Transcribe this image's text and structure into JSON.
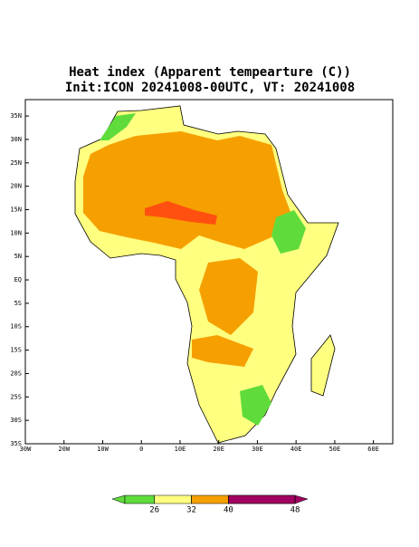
{
  "title": [
    "Heat index (Apparent tempearture (C))",
    "Init:ICON 20241008-00UTC, VT: 20241008"
  ],
  "map": {
    "xlim": [
      -30,
      65
    ],
    "ylim": [
      -35,
      38.5
    ],
    "xticks": [
      {
        "value": -30,
        "label": "30W"
      },
      {
        "value": -20,
        "label": "20W"
      },
      {
        "value": -10,
        "label": "10W"
      },
      0,
      {
        "value": 10,
        "label": "10E"
      },
      {
        "value": 20,
        "label": "20E"
      },
      {
        "value": 30,
        "label": "30E"
      },
      {
        "value": 40,
        "label": "40E"
      },
      {
        "value": 50,
        "label": "50E"
      },
      {
        "value": 60,
        "label": "60E"
      }
    ],
    "yticks": [
      {
        "value": 35,
        "label": "35N"
      },
      {
        "value": 30,
        "label": "30N"
      },
      {
        "value": 25,
        "label": "25N"
      },
      {
        "value": 20,
        "label": "20N"
      },
      {
        "value": 15,
        "label": "15N"
      },
      {
        "value": 10,
        "label": "10N"
      },
      {
        "value": 5,
        "label": "5N"
      },
      {
        "value": 0,
        "label": "EQ"
      },
      {
        "value": -5,
        "label": "5S"
      },
      {
        "value": -10,
        "label": "10S"
      },
      {
        "value": -15,
        "label": "15S"
      },
      {
        "value": -20,
        "label": "20S"
      },
      {
        "value": -25,
        "label": "25S"
      },
      {
        "value": -30,
        "label": "30S"
      },
      {
        "value": -35,
        "label": "35S"
      }
    ],
    "colorbar": {
      "ticks": [
        26,
        32,
        40,
        48
      ],
      "colors": [
        "#5fdc3c",
        "#ffff80",
        "#f5a000",
        "#ff5010",
        "#a00060"
      ]
    }
  }
}
